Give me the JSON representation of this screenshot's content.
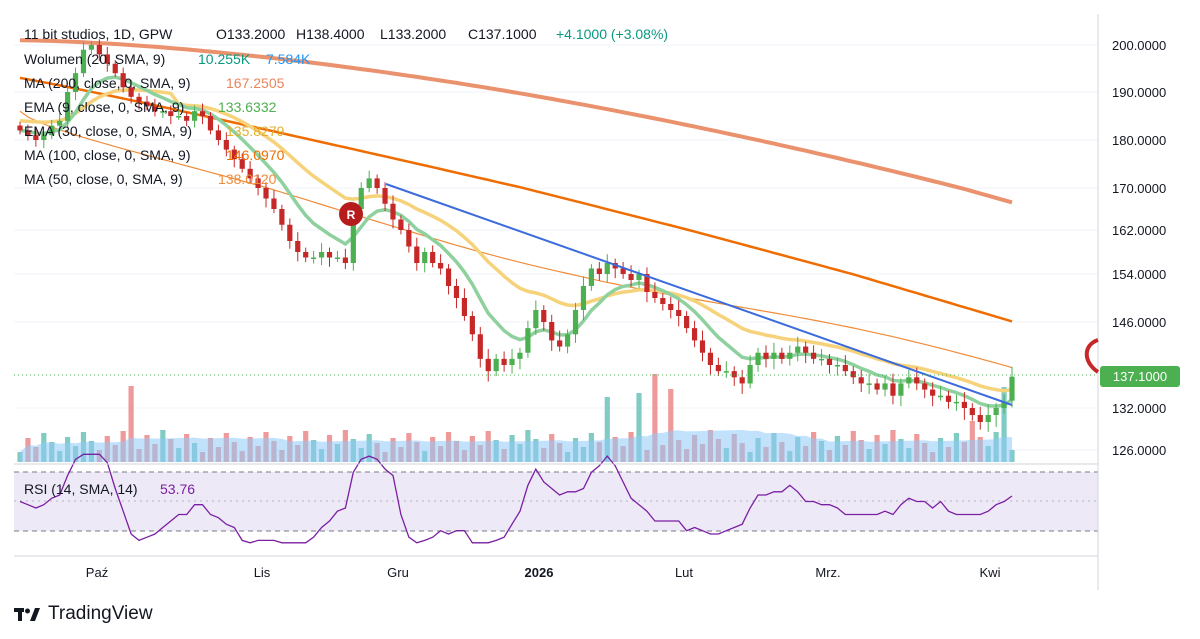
{
  "header": {
    "symbol": "11 bit studios, 1D, GPW",
    "open": "O133.2000",
    "high": "H138.4000",
    "low": "L133.2000",
    "close": "C137.1000",
    "change": "+4.1000 (+3.08%)"
  },
  "indicators": [
    {
      "label": "Wolumen (20, SMA, 9)",
      "value": "10.255K",
      "value2": "7.584K",
      "color": "#089981",
      "color2": "#2196f3"
    },
    {
      "label": "MA (200, close, 0, SMA, 9)",
      "value": "167.2505",
      "color": "#e8855d"
    },
    {
      "label": "EMA (9, close, 0, SMA, 9)",
      "value": "133.6332",
      "color": "#81c784"
    },
    {
      "label": "EMA (30, close, 0, SMA, 9)",
      "value": "135.8279",
      "color": "#f6c85f"
    },
    {
      "label": "MA (100, close, 0, SMA, 9)",
      "value": "146.0970",
      "color": "#ef6c00"
    },
    {
      "label": "MA (50, close, 0, SMA, 9)",
      "value": "138.0120",
      "color": "#ef8c3a"
    }
  ],
  "colors": {
    "up": "#4caf50",
    "down": "#c62828",
    "trendline": "#3c6bdc",
    "rsi": "#7b1fa2",
    "last_price_bg": "#4caf50"
  },
  "price_axis": {
    "ticks": [
      "200.0000",
      "190.0000",
      "180.0000",
      "170.0000",
      "162.0000",
      "154.0000",
      "146.0000",
      "132.0000",
      "126.0000"
    ],
    "last_price": "137.1000"
  },
  "time_axis": {
    "labels": [
      "Paź",
      "Lis",
      "Gru",
      "2026",
      "Lut",
      "Mrz.",
      "Kwi"
    ]
  },
  "rsi": {
    "label": "RSI (14, SMA, 14)",
    "value": "53.76"
  },
  "marker": {
    "text": "R"
  },
  "brand": {
    "name": "TradingView"
  },
  "chart_data": {
    "type": "candlestick",
    "title": "11 bit studios, 1D, GPW",
    "ylim": [
      124,
      204
    ],
    "last_price": 137.1,
    "closes": [
      182,
      181,
      180,
      181,
      183,
      184,
      190,
      194,
      199,
      200,
      198,
      196,
      194,
      191,
      189,
      188,
      187,
      186,
      186,
      185,
      185,
      184,
      186,
      185,
      182,
      180,
      178,
      176,
      174,
      172,
      170,
      168,
      166,
      163,
      160,
      158,
      157,
      157,
      158,
      157,
      157,
      156,
      166,
      170,
      172,
      170,
      167,
      164,
      162,
      159,
      156,
      158,
      156,
      155,
      152,
      150,
      147,
      144,
      140,
      138,
      140,
      139,
      140,
      141,
      145,
      148,
      146,
      143,
      142,
      144,
      148,
      152,
      155,
      154,
      156,
      155,
      154,
      153,
      154,
      151,
      150,
      149,
      148,
      147,
      145,
      143,
      141,
      139,
      138,
      138,
      137,
      136,
      139,
      141,
      140,
      141,
      140,
      141,
      142,
      141,
      140,
      140,
      139,
      139,
      138,
      137,
      136,
      136,
      135,
      136,
      134,
      136,
      137,
      136,
      135,
      134,
      134,
      133,
      133,
      132,
      131,
      130,
      131,
      132,
      133,
      137.1
    ],
    "ema9_last": 133.6332,
    "ema30_last": 135.8279,
    "ma50_last": 138.012,
    "ma100_last": 146.097,
    "ma200_last": 167.2505,
    "rsi_last": 53.76
  }
}
